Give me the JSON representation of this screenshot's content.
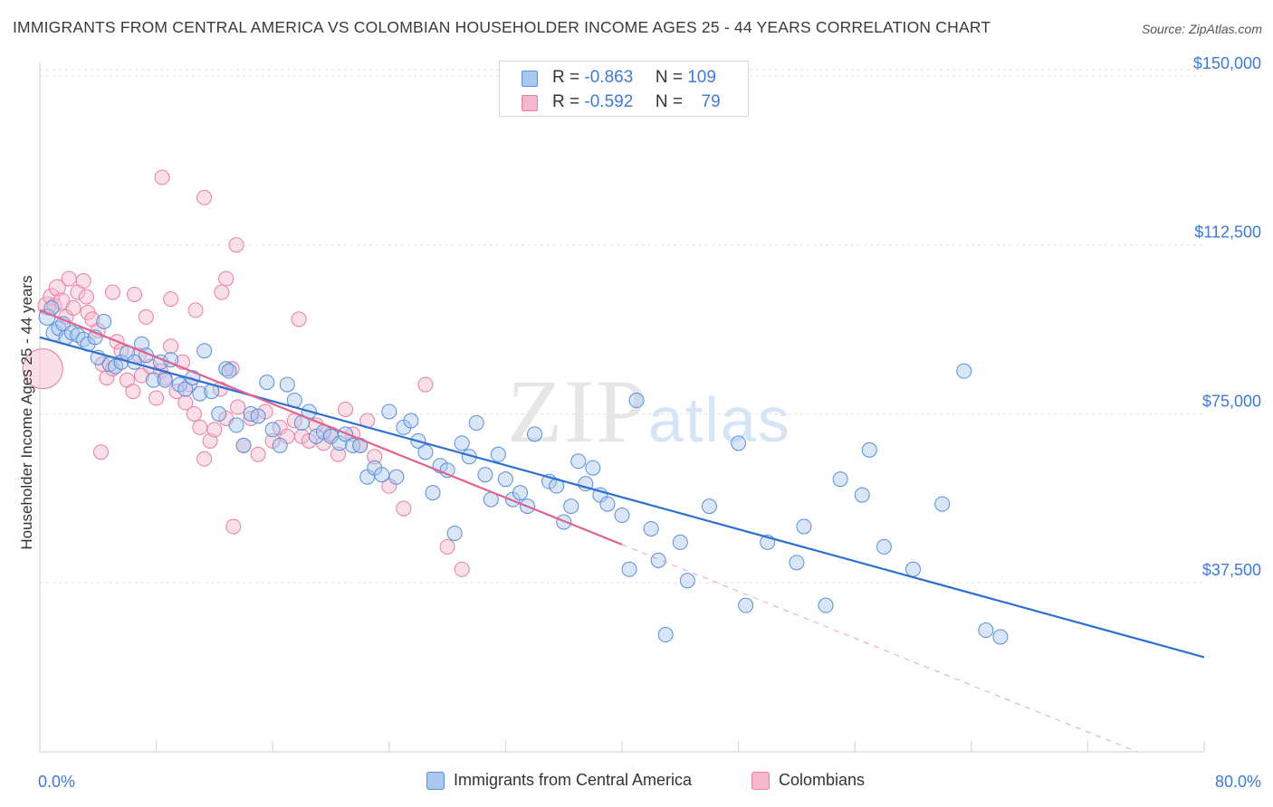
{
  "title": "IMMIGRANTS FROM CENTRAL AMERICA VS COLOMBIAN HOUSEHOLDER INCOME AGES 25 - 44 YEARS CORRELATION CHART",
  "source": "Source: ZipAtlas.com",
  "watermark": "ZIPatlas",
  "legend_top": [
    {
      "r_label": "R =",
      "r_value": "-0.863",
      "n_label": "N =",
      "n_value": "109"
    },
    {
      "r_label": "R =",
      "r_value": "-0.592",
      "n_label": "N =",
      "n_value": "79"
    }
  ],
  "colors": {
    "blue_fill": "#a9c8f0",
    "blue_stroke": "#5b8ed8",
    "blue_line": "#2f6fd0",
    "pink_fill": "#f6b8cc",
    "pink_stroke": "#e87ea1",
    "pink_line": "#e0628f",
    "tick_label": "#3d7bd6",
    "grid": "#dedede"
  },
  "chart_data": {
    "type": "scatter",
    "title": "IMMIGRANTS FROM CENTRAL AMERICA VS COLOMBIAN HOUSEHOLDER INCOME AGES 25 - 44 YEARS CORRELATION CHART",
    "xlabel": "",
    "ylabel": "Householder Income Ages 25 - 44 years",
    "xlim": [
      0,
      80
    ],
    "ylim": [
      0,
      153000
    ],
    "x_tick_labels": [
      "0.0%",
      "80.0%"
    ],
    "y_ticks": [
      37500,
      75000,
      112500,
      150000
    ],
    "y_tick_labels": [
      "$37,500",
      "$75,000",
      "$112,500",
      "$150,000"
    ],
    "grid": true,
    "legend_position": "bottom",
    "series": [
      {
        "name": "Immigrants from Central America",
        "r": -0.863,
        "n": 109,
        "trend": {
          "x0": 0,
          "y0": 92000,
          "x1": 80,
          "y1": 21000
        },
        "points": [
          [
            0.5,
            96500,
            9
          ],
          [
            0.8,
            98500,
            8
          ],
          [
            1.0,
            93000,
            9
          ],
          [
            1.3,
            94000,
            8
          ],
          [
            1.6,
            95000,
            8
          ],
          [
            1.8,
            92000,
            8
          ],
          [
            2.2,
            93000,
            8
          ],
          [
            2.6,
            92500,
            8
          ],
          [
            3.0,
            91500,
            8
          ],
          [
            3.3,
            90500,
            8
          ],
          [
            3.8,
            92000,
            8
          ],
          [
            4.0,
            87500,
            8
          ],
          [
            4.4,
            95500,
            8
          ],
          [
            4.8,
            86000,
            8
          ],
          [
            5.2,
            85500,
            8
          ],
          [
            5.6,
            86500,
            8
          ],
          [
            6.0,
            88500,
            8
          ],
          [
            6.5,
            86500,
            8
          ],
          [
            7.0,
            90500,
            8
          ],
          [
            7.3,
            88000,
            8
          ],
          [
            7.8,
            82500,
            8
          ],
          [
            8.3,
            86500,
            8
          ],
          [
            8.6,
            82500,
            8
          ],
          [
            9.0,
            87000,
            8
          ],
          [
            9.6,
            81500,
            8
          ],
          [
            10.0,
            80500,
            8
          ],
          [
            10.5,
            83000,
            8
          ],
          [
            11.0,
            79500,
            8
          ],
          [
            11.3,
            89000,
            8
          ],
          [
            11.8,
            80000,
            8
          ],
          [
            12.3,
            75000,
            8
          ],
          [
            12.8,
            85000,
            8
          ],
          [
            13.0,
            84500,
            8
          ],
          [
            13.5,
            72500,
            8
          ],
          [
            14.0,
            68000,
            8
          ],
          [
            14.5,
            75000,
            8
          ],
          [
            15.0,
            74500,
            8
          ],
          [
            15.6,
            82000,
            8
          ],
          [
            16.0,
            71500,
            8
          ],
          [
            16.5,
            68000,
            8
          ],
          [
            17.0,
            81500,
            8
          ],
          [
            17.5,
            78000,
            8
          ],
          [
            18.0,
            73000,
            8
          ],
          [
            18.5,
            75500,
            8
          ],
          [
            19.0,
            70000,
            8
          ],
          [
            19.5,
            71000,
            8
          ],
          [
            20.0,
            70000,
            8
          ],
          [
            20.6,
            68500,
            8
          ],
          [
            21.0,
            70500,
            8
          ],
          [
            21.5,
            68000,
            8
          ],
          [
            22.0,
            68000,
            8
          ],
          [
            22.5,
            61000,
            8
          ],
          [
            23.0,
            63000,
            8
          ],
          [
            23.5,
            61500,
            8
          ],
          [
            24.0,
            75500,
            8
          ],
          [
            24.5,
            61000,
            8
          ],
          [
            25.0,
            72000,
            8
          ],
          [
            25.5,
            73500,
            8
          ],
          [
            26.0,
            69000,
            8
          ],
          [
            26.5,
            66500,
            8
          ],
          [
            27.0,
            57500,
            8
          ],
          [
            27.5,
            63500,
            8
          ],
          [
            28.0,
            62500,
            8
          ],
          [
            28.5,
            48500,
            8
          ],
          [
            29.0,
            68500,
            8
          ],
          [
            29.5,
            65500,
            8
          ],
          [
            30.0,
            73000,
            8
          ],
          [
            30.6,
            61500,
            8
          ],
          [
            31.0,
            56000,
            8
          ],
          [
            31.5,
            66000,
            8
          ],
          [
            32.0,
            60500,
            8
          ],
          [
            32.5,
            56000,
            8
          ],
          [
            33.0,
            57500,
            8
          ],
          [
            33.5,
            54500,
            8
          ],
          [
            34.0,
            70500,
            8
          ],
          [
            35.0,
            60000,
            8
          ],
          [
            35.5,
            59000,
            8
          ],
          [
            36.0,
            51000,
            8
          ],
          [
            36.5,
            54500,
            8
          ],
          [
            37.0,
            64500,
            8
          ],
          [
            37.5,
            59500,
            8
          ],
          [
            38.0,
            63000,
            8
          ],
          [
            38.5,
            57000,
            8
          ],
          [
            39.0,
            55000,
            8
          ],
          [
            40.0,
            52500,
            8
          ],
          [
            40.5,
            40500,
            8
          ],
          [
            41.0,
            78000,
            8
          ],
          [
            42.0,
            49500,
            8
          ],
          [
            42.5,
            42500,
            8
          ],
          [
            43.0,
            26000,
            8
          ],
          [
            44.0,
            46500,
            8
          ],
          [
            44.5,
            38000,
            8
          ],
          [
            46.0,
            54500,
            8
          ],
          [
            48.0,
            68500,
            8
          ],
          [
            48.5,
            32500,
            8
          ],
          [
            50.0,
            46500,
            8
          ],
          [
            52.0,
            42000,
            8
          ],
          [
            52.5,
            50000,
            8
          ],
          [
            54.0,
            32500,
            8
          ],
          [
            55.0,
            60500,
            8
          ],
          [
            56.5,
            57000,
            8
          ],
          [
            57.0,
            67000,
            8
          ],
          [
            58.0,
            45500,
            8
          ],
          [
            60.0,
            40500,
            8
          ],
          [
            62.0,
            55000,
            8
          ],
          [
            63.5,
            84500,
            8
          ],
          [
            65.0,
            27000,
            8
          ],
          [
            66.0,
            25500,
            8
          ]
        ]
      },
      {
        "name": "Colombians",
        "r": -0.592,
        "n": 79,
        "trend": {
          "x0": 0,
          "y0": 98000,
          "x1": 40,
          "y1": 46000,
          "dash_x1": 80,
          "dash_y1": -6000
        },
        "points": [
          [
            0.2,
            85000,
            22
          ],
          [
            0.5,
            99000,
            10
          ],
          [
            0.8,
            101000,
            9
          ],
          [
            1.0,
            99000,
            8
          ],
          [
            1.2,
            103000,
            9
          ],
          [
            1.5,
            100000,
            9
          ],
          [
            1.8,
            96500,
            8
          ],
          [
            2.0,
            105000,
            8
          ],
          [
            2.3,
            98500,
            8
          ],
          [
            2.6,
            102000,
            8
          ],
          [
            3.0,
            104500,
            8
          ],
          [
            3.3,
            97500,
            8
          ],
          [
            3.6,
            96000,
            8
          ],
          [
            4.0,
            93500,
            8
          ],
          [
            4.3,
            86000,
            8
          ],
          [
            4.6,
            83000,
            8
          ],
          [
            5.0,
            85000,
            8
          ],
          [
            5.3,
            91000,
            8
          ],
          [
            5.6,
            89000,
            8
          ],
          [
            6.0,
            82500,
            8
          ],
          [
            6.4,
            80000,
            8
          ],
          [
            6.8,
            88000,
            8
          ],
          [
            7.0,
            83500,
            8
          ],
          [
            7.3,
            96500,
            8
          ],
          [
            7.6,
            85500,
            8
          ],
          [
            8.0,
            78500,
            8
          ],
          [
            8.3,
            84500,
            8
          ],
          [
            8.6,
            83000,
            8
          ],
          [
            9.0,
            90000,
            8
          ],
          [
            9.4,
            80000,
            8
          ],
          [
            9.8,
            86500,
            8
          ],
          [
            10.0,
            77500,
            8
          ],
          [
            10.3,
            81500,
            8
          ],
          [
            10.6,
            75000,
            8
          ],
          [
            11.0,
            72000,
            8
          ],
          [
            11.3,
            65000,
            8
          ],
          [
            11.7,
            69000,
            8
          ],
          [
            12.0,
            71500,
            8
          ],
          [
            12.4,
            80500,
            8
          ],
          [
            12.8,
            74000,
            8
          ],
          [
            13.2,
            85000,
            8
          ],
          [
            13.6,
            76500,
            8
          ],
          [
            14.0,
            68000,
            8
          ],
          [
            14.5,
            74000,
            8
          ],
          [
            15.0,
            66000,
            8
          ],
          [
            15.5,
            75500,
            8
          ],
          [
            16.0,
            69000,
            8
          ],
          [
            16.5,
            72000,
            8
          ],
          [
            17.0,
            70000,
            8
          ],
          [
            17.5,
            73500,
            8
          ],
          [
            18.0,
            70000,
            8
          ],
          [
            18.5,
            69000,
            8
          ],
          [
            19.0,
            72500,
            8
          ],
          [
            19.5,
            68500,
            8
          ],
          [
            20.0,
            70500,
            8
          ],
          [
            20.5,
            66000,
            8
          ],
          [
            21.0,
            76000,
            8
          ],
          [
            21.5,
            70500,
            8
          ],
          [
            22.0,
            68000,
            8
          ],
          [
            22.5,
            73500,
            8
          ],
          [
            23.0,
            65500,
            8
          ],
          [
            24.0,
            59000,
            8
          ],
          [
            25.0,
            54000,
            8
          ],
          [
            26.5,
            81500,
            8
          ],
          [
            28.0,
            45500,
            8
          ],
          [
            29.0,
            40500,
            8
          ],
          [
            3.2,
            101000,
            8
          ],
          [
            5.0,
            102000,
            8
          ],
          [
            6.5,
            101500,
            8
          ],
          [
            8.4,
            127500,
            8
          ],
          [
            11.3,
            123000,
            8
          ],
          [
            13.5,
            112500,
            8
          ],
          [
            12.8,
            105000,
            8
          ],
          [
            10.7,
            98000,
            8
          ],
          [
            12.5,
            102000,
            8
          ],
          [
            17.8,
            96000,
            8
          ],
          [
            9.0,
            100500,
            8
          ],
          [
            13.3,
            50000,
            8
          ],
          [
            4.2,
            66500,
            8
          ]
        ]
      }
    ]
  },
  "legend_bottom": [
    {
      "label": "Immigrants from Central America"
    },
    {
      "label": "Colombians"
    }
  ]
}
